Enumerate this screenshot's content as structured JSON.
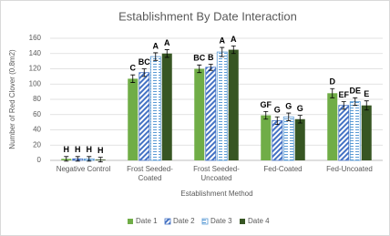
{
  "chart_data": {
    "type": "bar",
    "title": "Establishment By Date Interaction",
    "y_label": "Number of Red Clover (0.8m2)",
    "x_label": "Establishment Method",
    "categories": [
      "Negative Control",
      "Frost Seeded-\nCoated",
      "Frost Seeded-\nUncoated",
      "Fed-Coated",
      "Fed-Uncoated"
    ],
    "ylim": [
      0,
      160
    ],
    "yticks": [
      0,
      20,
      40,
      60,
      80,
      100,
      120,
      140,
      160
    ],
    "grid": true,
    "legend": "bottom",
    "series": [
      {
        "name": "Date 1",
        "color": "#70ad47",
        "pattern": "solid",
        "values": [
          2,
          107,
          120,
          59,
          88
        ],
        "errors": [
          3,
          5,
          5,
          5,
          6
        ],
        "letters": [
          "H",
          "C",
          "BC",
          "GF",
          "D"
        ]
      },
      {
        "name": "Date 2",
        "color": "#4472c4",
        "pattern": "diagonal",
        "values": [
          2,
          115,
          122,
          52,
          72
        ],
        "errors": [
          3,
          5,
          4,
          5,
          5
        ],
        "letters": [
          "H",
          "BC",
          "B",
          "G",
          "EF"
        ]
      },
      {
        "name": "Date 3",
        "color": "#5b9bd5",
        "pattern": "dashes",
        "values": [
          2,
          136,
          142,
          57,
          77
        ],
        "errors": [
          3,
          5,
          6,
          5,
          5
        ],
        "letters": [
          "H",
          "A",
          "A",
          "G",
          "DE"
        ]
      },
      {
        "name": "Date 4",
        "color": "#375623",
        "pattern": "solid",
        "values": [
          1,
          140,
          145,
          54,
          72
        ],
        "errors": [
          3,
          5,
          5,
          5,
          6
        ],
        "letters": [
          "H",
          "A",
          "A",
          "G",
          "E"
        ]
      }
    ]
  }
}
